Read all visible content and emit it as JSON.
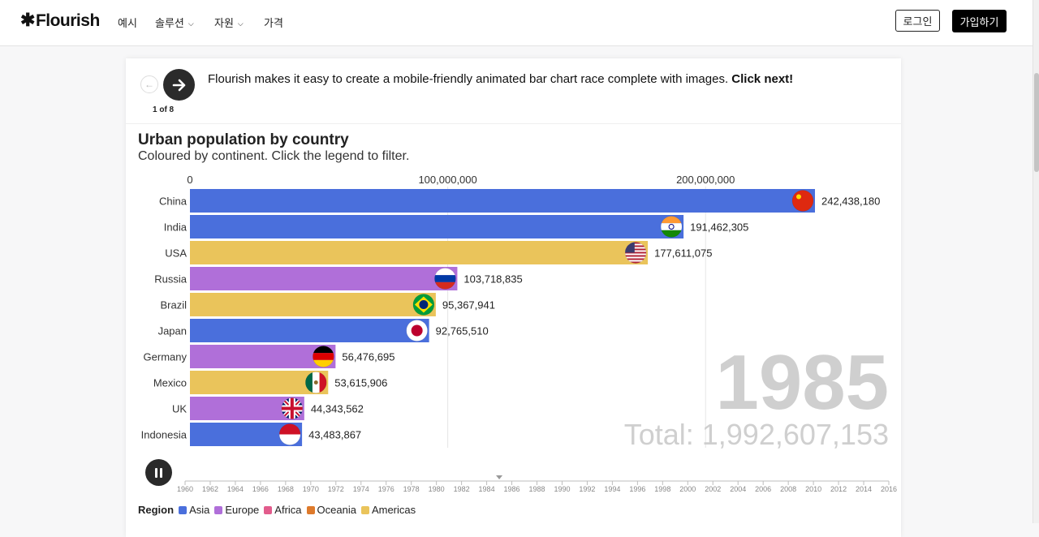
{
  "nav": {
    "logo": "Flourish",
    "logo_mark": "✱",
    "menu": [
      {
        "label": "예시",
        "has_dropdown": false
      },
      {
        "label": "솔루션",
        "has_dropdown": true
      },
      {
        "label": "자원",
        "has_dropdown": true
      },
      {
        "label": "가격",
        "has_dropdown": false
      }
    ],
    "login_label": "로그인",
    "signup_label": "가입하기"
  },
  "story": {
    "text": "Flourish makes it easy to create a mobile-friendly animated bar chart race complete with images.",
    "text_bold": "Click next!",
    "slide_counter": "1 of 8",
    "prev_icon": "arrow-left-icon",
    "next_icon": "arrow-right-icon"
  },
  "chart_data": {
    "type": "bar",
    "title": "Urban population by country",
    "subtitle": "Coloured by continent. Click the legend to filter.",
    "x_ticks": [
      0,
      100000000,
      200000000
    ],
    "x_tick_labels": [
      "0",
      "100,000,000",
      "200,000,000"
    ],
    "xlim": [
      0,
      242438180
    ],
    "bars": [
      {
        "label": "China",
        "value": 242438180,
        "value_label": "242,438,180",
        "region": "Asia",
        "flag": "china-flag-icon"
      },
      {
        "label": "India",
        "value": 191462305,
        "value_label": "191,462,305",
        "region": "Asia",
        "flag": "india-flag-icon"
      },
      {
        "label": "USA",
        "value": 177611075,
        "value_label": "177,611,075",
        "region": "Americas",
        "flag": "usa-flag-icon"
      },
      {
        "label": "Russia",
        "value": 103718835,
        "value_label": "103,718,835",
        "region": "Europe",
        "flag": "russia-flag-icon"
      },
      {
        "label": "Brazil",
        "value": 95367941,
        "value_label": "95,367,941",
        "region": "Americas",
        "flag": "brazil-flag-icon"
      },
      {
        "label": "Japan",
        "value": 92765510,
        "value_label": "92,765,510",
        "region": "Asia",
        "flag": "japan-flag-icon"
      },
      {
        "label": "Germany",
        "value": 56476695,
        "value_label": "56,476,695",
        "region": "Europe",
        "flag": "germany-flag-icon"
      },
      {
        "label": "Mexico",
        "value": 53615906,
        "value_label": "53,615,906",
        "region": "Americas",
        "flag": "mexico-flag-icon"
      },
      {
        "label": "UK",
        "value": 44343562,
        "value_label": "44,343,562",
        "region": "Europe",
        "flag": "uk-flag-icon"
      },
      {
        "label": "Indonesia",
        "value": 43483867,
        "value_label": "43,483,867",
        "region": "Asia",
        "flag": "indonesia-flag-icon"
      }
    ],
    "current_year": "1985",
    "total_label": "Total: 1,992,607,153",
    "timeline": {
      "start": 1960,
      "end": 2016,
      "step": 2,
      "current": 1985,
      "labels": [
        "1960",
        "1962",
        "1964",
        "1966",
        "1968",
        "1970",
        "1972",
        "1974",
        "1976",
        "1978",
        "1980",
        "1982",
        "1984",
        "1986",
        "1988",
        "1990",
        "1992",
        "1994",
        "1996",
        "1998",
        "2000",
        "2002",
        "2004",
        "2006",
        "2008",
        "2010",
        "2012",
        "2014",
        "2016"
      ]
    },
    "grid": true
  },
  "legend": {
    "title": "Region",
    "items": [
      {
        "label": "Asia",
        "color": "#4a6fdc"
      },
      {
        "label": "Europe",
        "color": "#b06fd9"
      },
      {
        "label": "Africa",
        "color": "#e25c8c"
      },
      {
        "label": "Oceania",
        "color": "#de7a2c"
      },
      {
        "label": "Americas",
        "color": "#eac45b"
      }
    ]
  },
  "colors": {
    "Asia": "#4a6fdc",
    "Europe": "#b06fd9",
    "Americas": "#eac45b",
    "Africa": "#e25c8c",
    "Oceania": "#de7a2c",
    "year_text": "#cfcfcf"
  },
  "player": {
    "state": "playing",
    "icon": "pause-icon"
  }
}
